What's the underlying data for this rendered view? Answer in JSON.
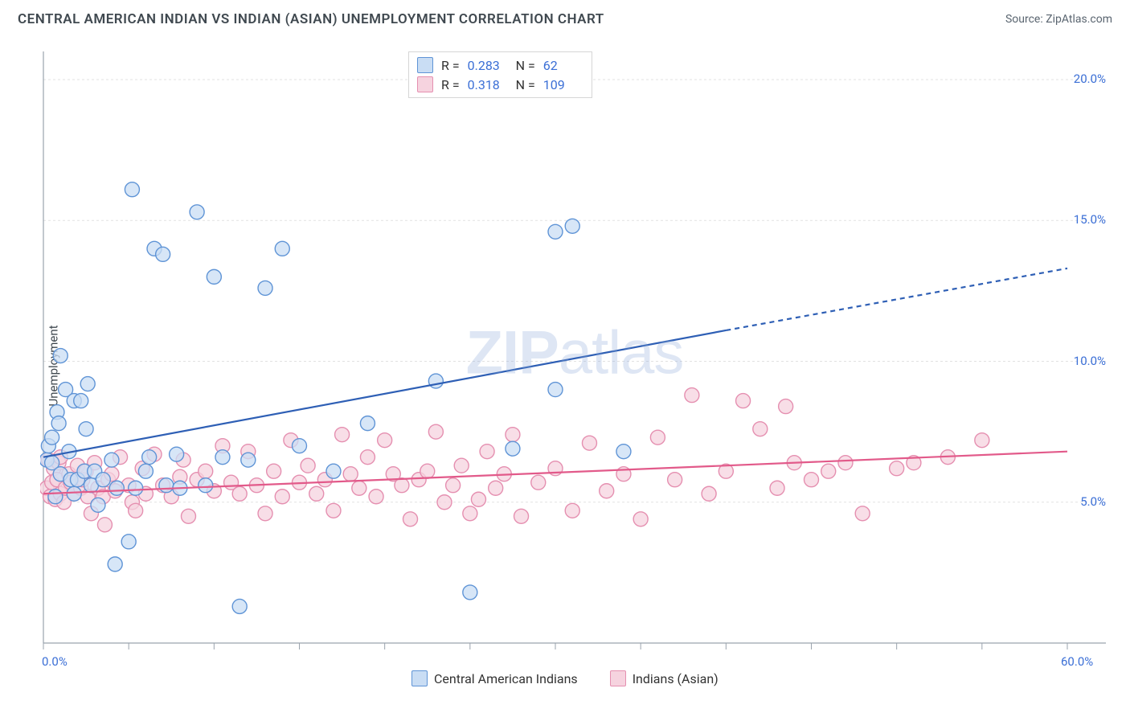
{
  "header": {
    "title": "CENTRAL AMERICAN INDIAN VS INDIAN (ASIAN) UNEMPLOYMENT CORRELATION CHART",
    "source_prefix": "Source: ",
    "source_name": "ZipAtlas.com"
  },
  "watermark": {
    "zip": "ZIP",
    "atlas": "atlas"
  },
  "chart": {
    "type": "scatter",
    "ylabel": "Unemployment",
    "xlim": [
      0,
      60
    ],
    "ylim": [
      0,
      21
    ],
    "xtick_step": 5,
    "ytick_step": 5,
    "x_tick_labels": [
      "0.0%",
      "",
      "",
      "",
      "",
      "",
      "",
      "",
      "",
      "",
      "",
      "",
      "60.0%"
    ],
    "y_tick_labels": [
      "",
      "5.0%",
      "10.0%",
      "15.0%",
      "20.0%"
    ],
    "grid_color": "#e2e2e2",
    "axis_color": "#9aa3ad",
    "background_color": "#ffffff",
    "tick_label_color": "#3b6fd6",
    "marker_radius": 9,
    "marker_stroke_width": 1.4,
    "trend_stroke_width": 2.2,
    "series": [
      {
        "key": "cai",
        "label": "Central American Indians",
        "fill": "#c9ddf4",
        "stroke": "#5f94d6",
        "trend_color": "#2e5fb5",
        "r": "0.283",
        "n": "62",
        "trend": {
          "x1": 0,
          "y1": 6.6,
          "x2": 40,
          "y2": 11.1,
          "dashed_to_x": 60,
          "dashed_to_y": 13.3
        },
        "points": [
          [
            0.2,
            6.5
          ],
          [
            0.3,
            7
          ],
          [
            0.5,
            6.4
          ],
          [
            0.5,
            7.3
          ],
          [
            0.7,
            5.2
          ],
          [
            0.8,
            8.2
          ],
          [
            0.9,
            7.8
          ],
          [
            1,
            6
          ],
          [
            1,
            10.2
          ],
          [
            1.3,
            9
          ],
          [
            1.5,
            6.8
          ],
          [
            1.6,
            5.8
          ],
          [
            1.8,
            5.3
          ],
          [
            1.8,
            8.6
          ],
          [
            2,
            5.8
          ],
          [
            2.2,
            8.6
          ],
          [
            2.4,
            6.1
          ],
          [
            2.5,
            7.6
          ],
          [
            2.6,
            9.2
          ],
          [
            2.8,
            5.6
          ],
          [
            3,
            6.1
          ],
          [
            3.2,
            4.9
          ],
          [
            3.5,
            5.8
          ],
          [
            4,
            6.5
          ],
          [
            4.2,
            2.8
          ],
          [
            4.3,
            5.5
          ],
          [
            5,
            3.6
          ],
          [
            5.2,
            16.1
          ],
          [
            5.4,
            5.5
          ],
          [
            6,
            6.1
          ],
          [
            6.2,
            6.6
          ],
          [
            6.5,
            14
          ],
          [
            7,
            13.8
          ],
          [
            7.2,
            5.6
          ],
          [
            7.8,
            6.7
          ],
          [
            8,
            5.5
          ],
          [
            9,
            15.3
          ],
          [
            9.5,
            5.6
          ],
          [
            10,
            13
          ],
          [
            10.5,
            6.6
          ],
          [
            11.5,
            1.3
          ],
          [
            12,
            6.5
          ],
          [
            13,
            12.6
          ],
          [
            14,
            14
          ],
          [
            15,
            7
          ],
          [
            17,
            6.1
          ],
          [
            19,
            7.8
          ],
          [
            23,
            9.3
          ],
          [
            25,
            1.8
          ],
          [
            27.5,
            6.9
          ],
          [
            30,
            9
          ],
          [
            30,
            14.6
          ],
          [
            31,
            14.8
          ],
          [
            34,
            6.8
          ]
        ]
      },
      {
        "key": "ind",
        "label": "Indians (Asian)",
        "fill": "#f6d3df",
        "stroke": "#e58fb0",
        "trend_color": "#e25a8a",
        "r": "0.318",
        "n": "109",
        "trend": {
          "x1": 0,
          "y1": 5.3,
          "x2": 60,
          "y2": 6.8,
          "dashed_to_x": 60,
          "dashed_to_y": 6.8
        },
        "points": [
          [
            0.2,
            5.5
          ],
          [
            0.3,
            6.5
          ],
          [
            0.4,
            5.2
          ],
          [
            0.5,
            5.7
          ],
          [
            0.6,
            6.2
          ],
          [
            0.7,
            5.1
          ],
          [
            0.8,
            5.8
          ],
          [
            0.9,
            6.4
          ],
          [
            1,
            5.3
          ],
          [
            1,
            6.6
          ],
          [
            1.2,
            5
          ],
          [
            1.3,
            5.5
          ],
          [
            1.5,
            6
          ],
          [
            1.6,
            5.7
          ],
          [
            1.8,
            5.3
          ],
          [
            2,
            6.3
          ],
          [
            2.2,
            5.5
          ],
          [
            2.3,
            5.8
          ],
          [
            2.5,
            6.1
          ],
          [
            2.6,
            5.2
          ],
          [
            2.8,
            4.6
          ],
          [
            3,
            6.4
          ],
          [
            3.2,
            5.5
          ],
          [
            3.5,
            5.2
          ],
          [
            3.6,
            4.2
          ],
          [
            3.8,
            5.8
          ],
          [
            4,
            6
          ],
          [
            4.2,
            5.4
          ],
          [
            4.5,
            6.6
          ],
          [
            5,
            5.6
          ],
          [
            5.2,
            5
          ],
          [
            5.4,
            4.7
          ],
          [
            5.8,
            6.2
          ],
          [
            6,
            5.3
          ],
          [
            6.5,
            6.7
          ],
          [
            7,
            5.6
          ],
          [
            7.5,
            5.2
          ],
          [
            8,
            5.9
          ],
          [
            8.2,
            6.5
          ],
          [
            8.5,
            4.5
          ],
          [
            9,
            5.8
          ],
          [
            9.5,
            6.1
          ],
          [
            10,
            5.4
          ],
          [
            10.5,
            7
          ],
          [
            11,
            5.7
          ],
          [
            11.5,
            5.3
          ],
          [
            12,
            6.8
          ],
          [
            12.5,
            5.6
          ],
          [
            13,
            4.6
          ],
          [
            13.5,
            6.1
          ],
          [
            14,
            5.2
          ],
          [
            14.5,
            7.2
          ],
          [
            15,
            5.7
          ],
          [
            15.5,
            6.3
          ],
          [
            16,
            5.3
          ],
          [
            16.5,
            5.8
          ],
          [
            17,
            4.7
          ],
          [
            17.5,
            7.4
          ],
          [
            18,
            6
          ],
          [
            18.5,
            5.5
          ],
          [
            19,
            6.6
          ],
          [
            19.5,
            5.2
          ],
          [
            20,
            7.2
          ],
          [
            20.5,
            6
          ],
          [
            21,
            5.6
          ],
          [
            21.5,
            4.4
          ],
          [
            22,
            5.8
          ],
          [
            22.5,
            6.1
          ],
          [
            23,
            7.5
          ],
          [
            23.5,
            5
          ],
          [
            24,
            5.6
          ],
          [
            24.5,
            6.3
          ],
          [
            25,
            4.6
          ],
          [
            25.5,
            5.1
          ],
          [
            26,
            6.8
          ],
          [
            26.5,
            5.5
          ],
          [
            27,
            6
          ],
          [
            27.5,
            7.4
          ],
          [
            28,
            4.5
          ],
          [
            29,
            5.7
          ],
          [
            30,
            6.2
          ],
          [
            31,
            4.7
          ],
          [
            32,
            7.1
          ],
          [
            33,
            5.4
          ],
          [
            34,
            6
          ],
          [
            35,
            4.4
          ],
          [
            36,
            7.3
          ],
          [
            37,
            5.8
          ],
          [
            38,
            8.8
          ],
          [
            39,
            5.3
          ],
          [
            40,
            6.1
          ],
          [
            41,
            8.6
          ],
          [
            42,
            7.6
          ],
          [
            43,
            5.5
          ],
          [
            43.5,
            8.4
          ],
          [
            44,
            6.4
          ],
          [
            45,
            5.8
          ],
          [
            46,
            6.1
          ],
          [
            47,
            6.4
          ],
          [
            48,
            4.6
          ],
          [
            50,
            6.2
          ],
          [
            51,
            6.4
          ],
          [
            53,
            6.6
          ],
          [
            55,
            7.2
          ]
        ]
      }
    ]
  },
  "legend_labels": {
    "r_label": "R =",
    "n_label": "N ="
  }
}
